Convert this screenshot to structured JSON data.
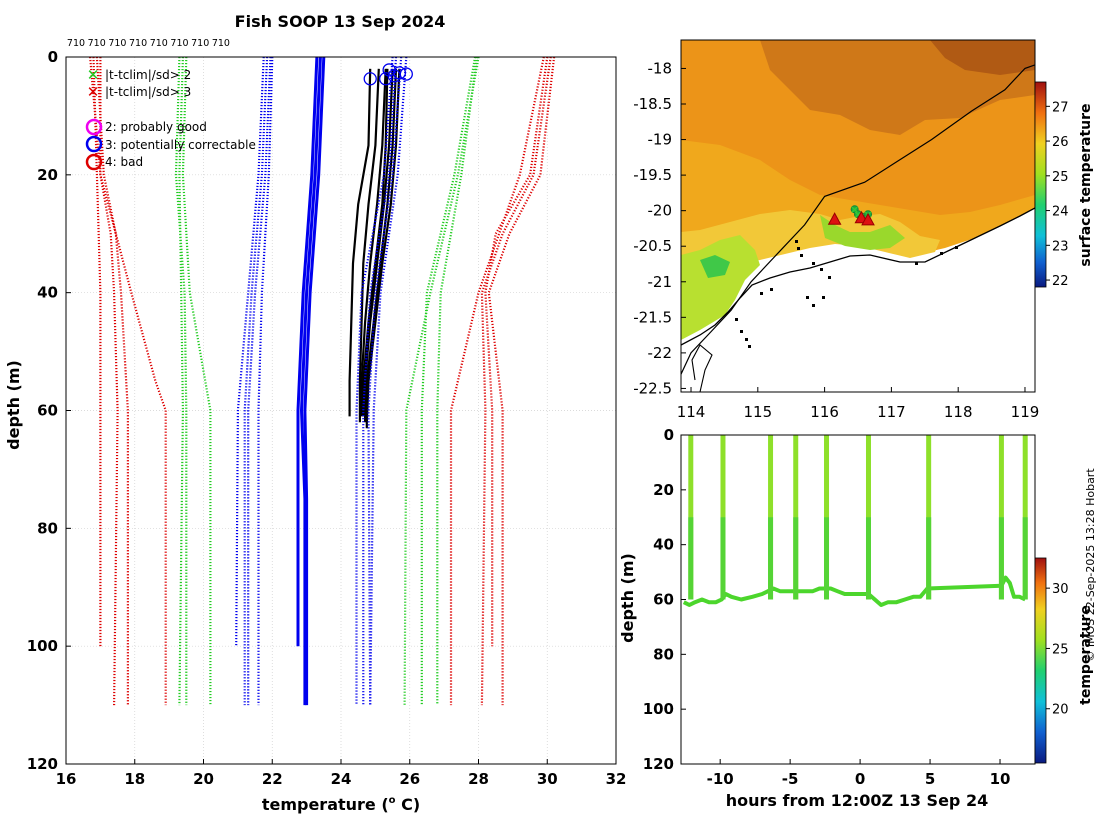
{
  "title": "Fish SOOP 13 Sep 2024",
  "credit": "© IMOS 22-Sep-2025 13:28 Hobart",
  "colors": {
    "blue": "#0000ee",
    "black": "#000000",
    "green": "#22cc22",
    "red": "#dd0000",
    "grid": "#d0d0d0",
    "magenta": "#ee00ee"
  },
  "chart_data": [
    {
      "id": "profile",
      "type": "line",
      "xlabel": "temperature (",
      "xlabel_sup": "o",
      "xlabel_tail": " C)",
      "ylabel": "depth (m)",
      "xlim": [
        16,
        32
      ],
      "ylim": [
        0,
        120
      ],
      "y_reversed": true,
      "xticks": [
        16,
        18,
        20,
        22,
        24,
        26,
        28,
        30,
        32
      ],
      "yticks": [
        0,
        20,
        40,
        60,
        80,
        100,
        120
      ],
      "grid": true,
      "top_labels": [
        "710",
        "710",
        "710",
        "710",
        "710",
        "710",
        "710",
        "710"
      ],
      "legend": [
        {
          "marker": "x",
          "color": "#22cc22",
          "label": "|t-tclim|/sd> 2"
        },
        {
          "marker": "x",
          "color": "#dd0000",
          "label": "|t-tclim|/sd> 3"
        },
        {
          "marker": "o",
          "color": "#ee00ee",
          "label": "2: probably good"
        },
        {
          "marker": "o",
          "color": "#0000ee",
          "label": "3: potentially correctable"
        },
        {
          "marker": "o",
          "color": "#dd0000",
          "label": "4: bad"
        }
      ],
      "series": [
        {
          "name": "climatology mean",
          "style": "solid",
          "color": "#0000ee",
          "profiles": [
            {
              "depth": [
                0,
                20,
                40,
                60,
                75,
                110
              ],
              "temp": [
                23.4,
                23.25,
                23.0,
                22.85,
                22.95,
                22.95
              ]
            },
            {
              "depth": [
                0,
                20,
                40,
                60,
                75,
                110
              ],
              "temp": [
                23.5,
                23.35,
                23.1,
                22.95,
                23.0,
                23.0
              ]
            },
            {
              "depth": [
                0,
                20,
                40,
                60,
                100
              ],
              "temp": [
                23.3,
                23.15,
                22.9,
                22.75,
                22.75
              ]
            }
          ]
        },
        {
          "name": "observed profiles",
          "style": "solid",
          "color": "#000000",
          "profiles": [
            {
              "depth": [
                2,
                15,
                25,
                35,
                45,
                55,
                61
              ],
              "temp": [
                24.85,
                24.8,
                24.5,
                24.35,
                24.3,
                24.25,
                24.25
              ]
            },
            {
              "depth": [
                2,
                15,
                25,
                35,
                45,
                55,
                62
              ],
              "temp": [
                25.1,
                25.0,
                24.8,
                24.65,
                24.6,
                24.55,
                24.55
              ]
            },
            {
              "depth": [
                2,
                15,
                25,
                35,
                45,
                55,
                61
              ],
              "temp": [
                25.3,
                25.2,
                25.05,
                24.85,
                24.7,
                24.6,
                24.6
              ]
            },
            {
              "depth": [
                2,
                15,
                25,
                35,
                45,
                55,
                62
              ],
              "temp": [
                25.5,
                25.4,
                25.25,
                25.05,
                24.85,
                24.7,
                24.7
              ]
            },
            {
              "depth": [
                2,
                15,
                25,
                35,
                45,
                55,
                63
              ],
              "temp": [
                25.6,
                25.5,
                25.35,
                25.15,
                24.95,
                24.75,
                24.75
              ]
            },
            {
              "depth": [
                2,
                15,
                25,
                35,
                45,
                55,
                62
              ],
              "temp": [
                25.7,
                25.6,
                25.45,
                25.2,
                25.0,
                24.8,
                24.75
              ]
            },
            {
              "depth": [
                2,
                15,
                25,
                35,
                45,
                55,
                61
              ],
              "temp": [
                25.35,
                25.3,
                25.2,
                25.0,
                24.8,
                24.65,
                24.65
              ]
            }
          ]
        },
        {
          "name": "climatology ±2sd",
          "style": "dotted",
          "color": "#0000ee",
          "profiles": [
            {
              "depth": [
                0,
                20,
                40,
                60,
                110
              ],
              "temp": [
                21.95,
                21.8,
                21.5,
                21.3,
                21.3
              ]
            },
            {
              "depth": [
                0,
                20,
                40,
                60,
                110
              ],
              "temp": [
                21.85,
                21.7,
                21.4,
                21.2,
                21.2
              ]
            },
            {
              "depth": [
                0,
                20,
                40,
                60,
                100
              ],
              "temp": [
                21.75,
                21.6,
                21.3,
                21.0,
                20.95
              ]
            },
            {
              "depth": [
                0,
                20,
                40,
                60,
                110
              ],
              "temp": [
                22.0,
                21.9,
                21.7,
                21.6,
                21.6
              ]
            },
            {
              "depth": [
                0,
                20,
                40,
                60,
                110
              ],
              "temp": [
                25.75,
                25.5,
                25.0,
                24.8,
                24.85
              ]
            },
            {
              "depth": [
                0,
                20,
                40,
                60,
                110
              ],
              "temp": [
                25.9,
                25.65,
                25.15,
                24.95,
                24.85
              ]
            },
            {
              "depth": [
                0,
                20,
                40,
                60,
                110
              ],
              "temp": [
                25.6,
                25.4,
                24.85,
                24.65,
                24.65
              ]
            },
            {
              "depth": [
                0,
                20,
                40,
                60,
                110
              ],
              "temp": [
                25.5,
                25.25,
                24.6,
                24.45,
                24.45
              ]
            }
          ]
        },
        {
          "name": "climatology ±3sd (inner)",
          "style": "dotted",
          "color": "#22cc22",
          "profiles": [
            {
              "depth": [
                0,
                20,
                40,
                60,
                110
              ],
              "temp": [
                19.4,
                19.3,
                19.35,
                19.4,
                19.3
              ]
            },
            {
              "depth": [
                0,
                20,
                40,
                60,
                110
              ],
              "temp": [
                19.5,
                19.4,
                19.6,
                20.2,
                20.2
              ]
            },
            {
              "depth": [
                0,
                20,
                40,
                60,
                110
              ],
              "temp": [
                19.3,
                19.2,
                19.45,
                19.5,
                19.5
              ]
            },
            {
              "depth": [
                0,
                20,
                40,
                60,
                110
              ],
              "temp": [
                28.0,
                27.4,
                26.6,
                25.9,
                25.85
              ]
            },
            {
              "depth": [
                0,
                20,
                40,
                60,
                110
              ],
              "temp": [
                27.95,
                27.5,
                26.9,
                26.8,
                26.8
              ]
            },
            {
              "depth": [
                0,
                20,
                40,
                60,
                110
              ],
              "temp": [
                27.9,
                27.3,
                26.5,
                26.35,
                26.35
              ]
            }
          ]
        },
        {
          "name": "climatology ±3sd (outer)",
          "style": "dotted",
          "color": "#dd0000",
          "profiles": [
            {
              "depth": [
                0,
                20,
                30,
                40,
                60,
                110
              ],
              "temp": [
                17.0,
                17.0,
                17.3,
                17.4,
                17.5,
                17.4
              ]
            },
            {
              "depth": [
                0,
                20,
                30,
                40,
                60,
                110
              ],
              "temp": [
                16.9,
                17.1,
                17.45,
                17.6,
                17.8,
                17.8
              ]
            },
            {
              "depth": [
                0,
                20,
                40,
                60,
                100
              ],
              "temp": [
                16.8,
                16.9,
                17.0,
                17.0,
                17.0
              ]
            },
            {
              "depth": [
                0,
                20,
                40,
                55,
                60,
                110
              ],
              "temp": [
                16.7,
                17.0,
                17.9,
                18.6,
                18.9,
                18.9
              ]
            },
            {
              "depth": [
                0,
                20,
                30,
                40,
                60,
                110
              ],
              "temp": [
                30.2,
                29.8,
                28.9,
                28.3,
                28.7,
                28.7
              ]
            },
            {
              "depth": [
                0,
                20,
                30,
                40,
                60,
                110
              ],
              "temp": [
                30.1,
                29.6,
                28.7,
                28.1,
                28.2,
                28.1
              ]
            },
            {
              "depth": [
                0,
                20,
                30,
                40,
                60,
                100
              ],
              "temp": [
                30.0,
                29.5,
                28.5,
                28.2,
                28.4,
                28.4
              ]
            },
            {
              "depth": [
                0,
                20,
                40,
                60,
                110
              ],
              "temp": [
                29.9,
                29.2,
                28.0,
                27.2,
                27.2
              ]
            }
          ]
        }
      ],
      "flag_markers": [
        {
          "temp": 25.4,
          "depth": 0.5,
          "color": "#0000ee"
        },
        {
          "temp": 25.7,
          "depth": 1.0,
          "color": "#0000ee"
        },
        {
          "temp": 25.9,
          "depth": 1.2,
          "color": "#0000ee"
        },
        {
          "temp": 24.85,
          "depth": 2.0,
          "color": "#0000ee"
        },
        {
          "temp": 25.3,
          "depth": 2.0,
          "color": "#0000ee"
        },
        {
          "temp": 25.55,
          "depth": 1.5,
          "color": "#0000ee"
        }
      ]
    },
    {
      "id": "map",
      "type": "heatmap",
      "xlim": [
        113.85,
        119.15
      ],
      "ylim": [
        -22.55,
        -17.6
      ],
      "xticks": [
        114,
        115,
        116,
        117,
        118,
        119
      ],
      "yticks": [
        -18,
        -18.5,
        -19,
        -19.5,
        -20,
        -20.5,
        -21,
        -21.5,
        -22,
        -22.5
      ],
      "colorbar": {
        "label": "surface temperature",
        "min": 21.8,
        "max": 27.7,
        "ticks": [
          22,
          23,
          24,
          25,
          26,
          27
        ]
      },
      "bathymetry_contour": {
        "lon": [
          113.85,
          114.0,
          114.3,
          114.6,
          114.9,
          115.3,
          115.7,
          116.0,
          116.6,
          117.1,
          117.6,
          118.2,
          118.7,
          119.0,
          119.15
        ],
        "lat": [
          -22.3,
          -22.0,
          -21.7,
          -21.4,
          -21.0,
          -20.6,
          -20.2,
          -19.8,
          -19.6,
          -19.3,
          -19.0,
          -18.6,
          -18.3,
          -18.0,
          -17.95
        ]
      },
      "track": [
        {
          "lon": 116.45,
          "lat": -19.98
        },
        {
          "lon": 116.5,
          "lat": -20.05
        },
        {
          "lon": 116.55,
          "lat": -20.08
        },
        {
          "lon": 116.6,
          "lat": -20.12
        },
        {
          "lon": 116.65,
          "lat": -20.05
        }
      ],
      "triangles": [
        {
          "lon": 116.15,
          "lat": -20.12
        },
        {
          "lon": 116.55,
          "lat": -20.1
        },
        {
          "lon": 116.65,
          "lat": -20.13
        }
      ]
    },
    {
      "id": "timeseries",
      "type": "scatter",
      "xlabel": "hours from 12:00Z 13 Sep 24",
      "ylabel": "depth (m)",
      "xlim": [
        -12.8,
        12.5
      ],
      "ylim": [
        0,
        120
      ],
      "y_reversed": true,
      "xticks": [
        -10,
        -5,
        0,
        5,
        10
      ],
      "yticks": [
        0,
        20,
        40,
        60,
        80,
        100,
        120
      ],
      "colorbar": {
        "label": "temperature",
        "min": 15.5,
        "max": 32.5,
        "ticks": [
          20,
          25,
          30
        ]
      },
      "casts": [
        -12.1,
        -9.8,
        -6.4,
        -4.6,
        -2.4,
        0.6,
        4.9,
        10.1,
        11.8
      ],
      "bottom_trace": {
        "hours": [
          -12.6,
          -12.2,
          -11.8,
          -11.3,
          -10.8,
          -10.3,
          -9.9,
          -9.6,
          -9.2,
          -8.5,
          -7.7,
          -7.0,
          -6.6,
          -6.2,
          -5.7,
          -5.2,
          -4.8,
          -4.4,
          -3.9,
          -3.4,
          -2.9,
          -2.5,
          -2.1,
          -1.6,
          -1.1,
          -0.5,
          0.3,
          0.6,
          1.5,
          2.0,
          2.6,
          3.2,
          3.8,
          4.3,
          4.8,
          10.1,
          10.4,
          10.7,
          11.0,
          11.4,
          11.8
        ],
        "depth": [
          61,
          62,
          61,
          60,
          61,
          61,
          60,
          58,
          59,
          60,
          59,
          58,
          57,
          56,
          57,
          57,
          57,
          57,
          57,
          57,
          56,
          56,
          56,
          57,
          58,
          58,
          58,
          58,
          62,
          61,
          61,
          60,
          59,
          59,
          56,
          55,
          52,
          54,
          59,
          59,
          60
        ]
      }
    }
  ]
}
